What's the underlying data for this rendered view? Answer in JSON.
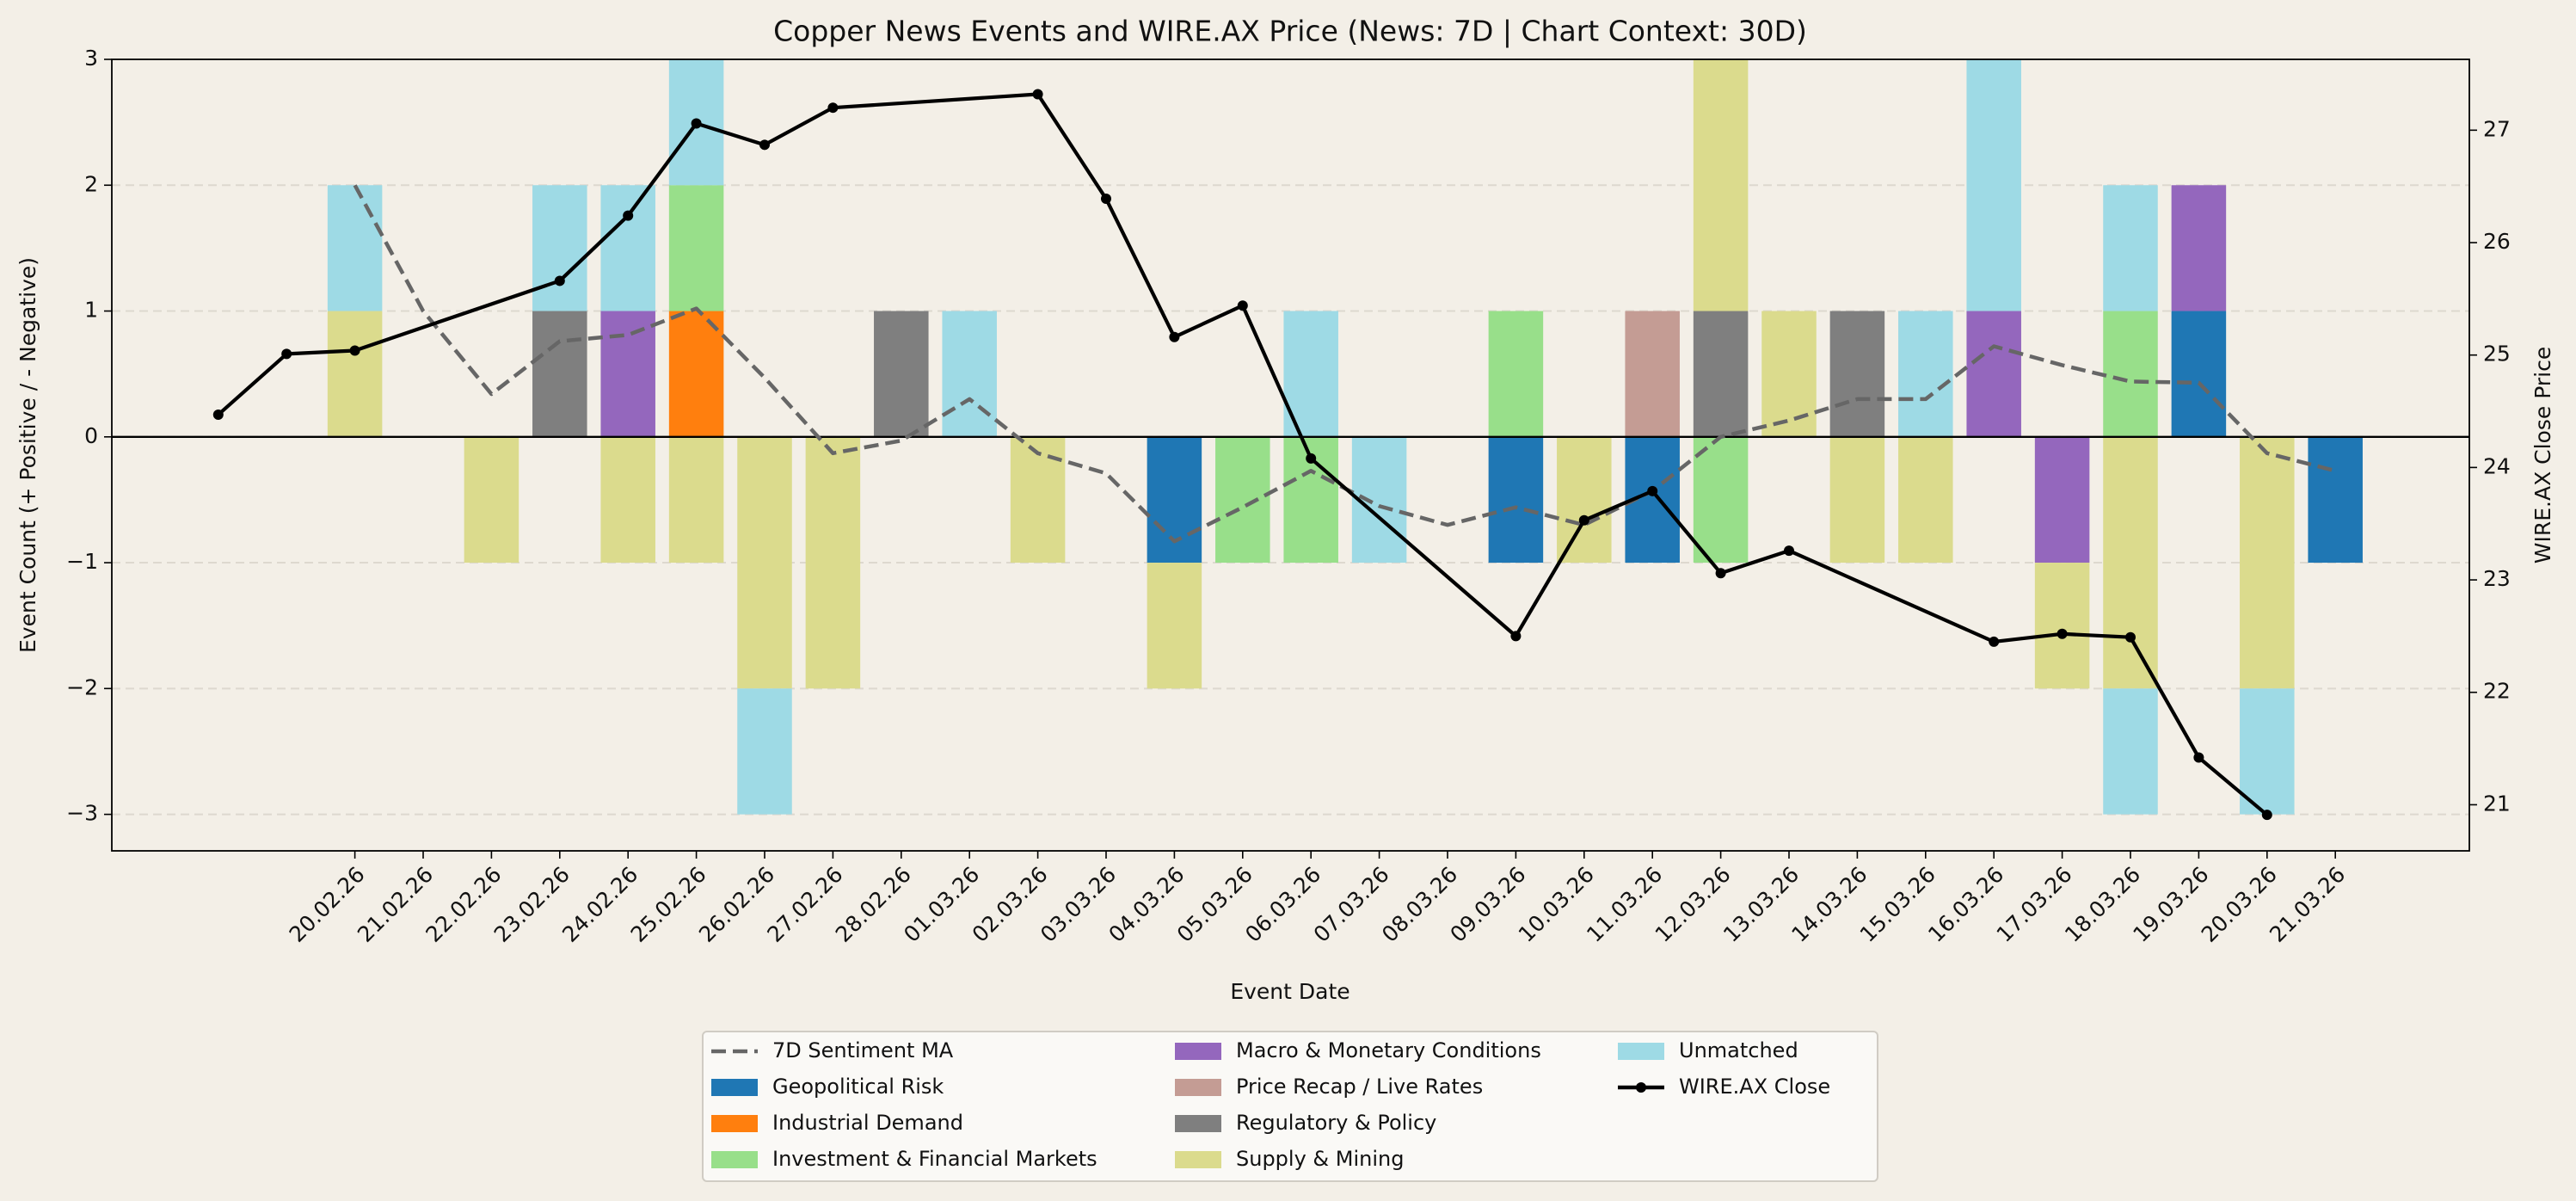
{
  "chart_data": {
    "type": "bar",
    "title": "Copper News Events and WIRE.AX Price (News: 7D | Chart Context: 30D)",
    "x_label": "Event Date",
    "y_label": "Event Count (+ Positive / - Negative)",
    "y2_label": "WIRE.AX Close Price",
    "categories": [
      "20.02.26",
      "21.02.26",
      "22.02.26",
      "23.02.26",
      "24.02.26",
      "25.02.26",
      "26.02.26",
      "27.02.26",
      "28.02.26",
      "01.03.26",
      "02.03.26",
      "03.03.26",
      "04.03.26",
      "05.03.26",
      "06.03.26",
      "07.03.26",
      "08.03.26",
      "09.03.26",
      "10.03.26",
      "11.03.26",
      "12.03.26",
      "13.03.26",
      "14.03.26",
      "15.03.26",
      "16.03.26",
      "17.03.26",
      "18.03.26",
      "19.03.26",
      "20.03.26",
      "21.03.26"
    ],
    "ylim": [
      -3.29,
      3
    ],
    "yticks": [
      {
        "value": -3,
        "label": "−3"
      },
      {
        "value": -2,
        "label": "−2"
      },
      {
        "value": -1,
        "label": "−1"
      },
      0,
      1,
      2,
      3
    ],
    "y2lim": [
      20.59,
      27.63
    ],
    "y2ticks": [
      21,
      22,
      23,
      24,
      25,
      26,
      27
    ],
    "grid": true,
    "legend": "lower center",
    "series": [
      {
        "name": "7D Sentiment MA",
        "type": "line",
        "linestyle": "dashed",
        "color": "#666666",
        "values": [
          2.0,
          1.0,
          0.34,
          0.76,
          0.81,
          1.02,
          0.47,
          -0.13,
          -0.03,
          0.3,
          -0.13,
          -0.29,
          -0.83,
          -0.56,
          -0.27,
          -0.55,
          -0.7,
          -0.56,
          -0.7,
          -0.43,
          0.0,
          0.13,
          0.3,
          0.3,
          0.72,
          0.57,
          0.44,
          0.43,
          -0.13,
          -0.27
        ]
      },
      {
        "name": "Geopolitical Risk",
        "type": "bar",
        "color": "#1f77b4",
        "values": [
          0,
          0,
          0,
          0,
          0,
          0,
          0,
          0,
          0,
          0,
          0,
          0,
          0,
          0,
          0,
          0,
          0,
          0,
          0,
          0,
          0,
          0,
          0,
          0,
          0,
          0,
          0,
          1,
          0,
          0
        ],
        "negative_values": [
          0,
          0,
          0,
          0,
          0,
          0,
          0,
          0,
          0,
          0,
          0,
          0,
          -1,
          0,
          0,
          0,
          0,
          -1,
          0,
          -1,
          0,
          0,
          0,
          0,
          0,
          0,
          0,
          0,
          0,
          -1
        ]
      },
      {
        "name": "Industrial Demand",
        "type": "bar",
        "color": "#ff7f0e",
        "values": [
          0,
          0,
          0,
          0,
          0,
          1,
          0,
          0,
          0,
          0,
          0,
          0,
          0,
          0,
          0,
          0,
          0,
          0,
          0,
          0,
          0,
          0,
          0,
          0,
          0,
          0,
          0,
          0,
          0,
          0
        ],
        "negative_values": [
          0,
          0,
          0,
          0,
          0,
          0,
          0,
          0,
          0,
          0,
          0,
          0,
          0,
          0,
          0,
          0,
          0,
          0,
          0,
          0,
          0,
          0,
          0,
          0,
          0,
          0,
          0,
          0,
          0,
          0
        ]
      },
      {
        "name": "Investment & Financial Markets",
        "type": "bar",
        "color": "#98df8a",
        "values": [
          0,
          0,
          0,
          0,
          0,
          1,
          0,
          0,
          0,
          0,
          0,
          0,
          0,
          0,
          0,
          0,
          0,
          1,
          0,
          0,
          0,
          0,
          0,
          0,
          0,
          0,
          1,
          0,
          0,
          0
        ],
        "negative_values": [
          0,
          0,
          0,
          0,
          0,
          0,
          0,
          0,
          0,
          0,
          0,
          0,
          0,
          -1,
          -1,
          0,
          0,
          0,
          0,
          0,
          -1,
          0,
          0,
          0,
          0,
          0,
          0,
          0,
          0,
          0
        ]
      },
      {
        "name": "Macro & Monetary Conditions",
        "type": "bar",
        "color": "#9467bd",
        "values": [
          0,
          0,
          0,
          0,
          1,
          0,
          0,
          0,
          0,
          0,
          0,
          0,
          0,
          0,
          0,
          0,
          0,
          0,
          0,
          0,
          0,
          0,
          0,
          0,
          1,
          0,
          0,
          1,
          0,
          0
        ],
        "negative_values": [
          0,
          0,
          0,
          0,
          0,
          0,
          0,
          0,
          0,
          0,
          0,
          0,
          0,
          0,
          0,
          0,
          0,
          0,
          0,
          0,
          0,
          0,
          0,
          0,
          0,
          -1,
          0,
          0,
          0,
          0
        ]
      },
      {
        "name": "Price Recap / Live Rates",
        "type": "bar",
        "color": "#c49c94",
        "values": [
          0,
          0,
          0,
          0,
          0,
          0,
          0,
          0,
          0,
          0,
          0,
          0,
          0,
          0,
          0,
          0,
          0,
          0,
          0,
          1,
          0,
          0,
          0,
          0,
          0,
          0,
          0,
          0,
          0,
          0
        ],
        "negative_values": [
          0,
          0,
          0,
          0,
          0,
          0,
          0,
          0,
          0,
          0,
          0,
          0,
          0,
          0,
          0,
          0,
          0,
          0,
          0,
          0,
          0,
          0,
          0,
          0,
          0,
          0,
          0,
          0,
          0,
          0
        ]
      },
      {
        "name": "Regulatory & Policy",
        "type": "bar",
        "color": "#7f7f7f",
        "values": [
          0,
          0,
          0,
          1,
          0,
          0,
          0,
          0,
          1,
          0,
          0,
          0,
          0,
          0,
          0,
          0,
          0,
          0,
          0,
          0,
          1,
          0,
          1,
          0,
          0,
          0,
          0,
          0,
          0,
          0
        ],
        "negative_values": [
          0,
          0,
          0,
          0,
          0,
          0,
          0,
          0,
          0,
          0,
          0,
          0,
          0,
          0,
          0,
          0,
          0,
          0,
          0,
          0,
          0,
          0,
          0,
          0,
          0,
          0,
          0,
          0,
          0,
          0
        ]
      },
      {
        "name": "Supply & Mining",
        "type": "bar",
        "color": "#dbdb8d",
        "values": [
          1,
          0,
          0,
          0,
          0,
          0,
          0,
          0,
          0,
          0,
          0,
          0,
          0,
          0,
          0,
          0,
          0,
          0,
          0,
          0,
          2,
          1,
          0,
          0,
          0,
          0,
          0,
          0,
          0,
          0
        ],
        "negative_values": [
          0,
          0,
          -1,
          0,
          -1,
          -1,
          -2,
          -2,
          0,
          0,
          -1,
          0,
          -1,
          0,
          0,
          0,
          0,
          0,
          -1,
          0,
          0,
          0,
          -1,
          -1,
          0,
          -1,
          -2,
          0,
          -2,
          0
        ]
      },
      {
        "name": "Unmatched",
        "type": "bar",
        "color": "#9edae5",
        "values": [
          1,
          0,
          0,
          1,
          1,
          1,
          0,
          0,
          0,
          1,
          0,
          0,
          0,
          0,
          1,
          0,
          0,
          0,
          0,
          0,
          0,
          0,
          0,
          1,
          2,
          0,
          1,
          0,
          0,
          0
        ],
        "negative_values": [
          0,
          0,
          0,
          0,
          0,
          0,
          -1,
          0,
          0,
          0,
          0,
          0,
          0,
          0,
          0,
          -1,
          0,
          0,
          0,
          0,
          0,
          0,
          0,
          0,
          0,
          0,
          -1,
          0,
          -1,
          0
        ]
      },
      {
        "name": "WIRE.AX Close",
        "type": "line",
        "axis": "y2",
        "marker": true,
        "color": "#000000",
        "x": [
          "18.02.26",
          "19.02.26",
          "20.02.26",
          "23.02.26",
          "24.02.26",
          "25.02.26",
          "26.02.26",
          "27.02.26",
          "02.03.26",
          "03.03.26",
          "04.03.26",
          "05.03.26",
          "06.03.26",
          "09.03.26",
          "10.03.26",
          "11.03.26",
          "12.03.26",
          "13.03.26",
          "16.03.26",
          "17.03.26",
          "18.03.26",
          "19.03.26",
          "20.03.26"
        ],
        "values": [
          24.47,
          25.01,
          25.04,
          25.66,
          26.24,
          27.06,
          26.87,
          27.2,
          27.32,
          26.39,
          25.16,
          25.44,
          24.08,
          22.5,
          23.53,
          23.79,
          23.06,
          23.26,
          22.45,
          22.52,
          22.49,
          21.42,
          20.91
        ]
      }
    ]
  }
}
